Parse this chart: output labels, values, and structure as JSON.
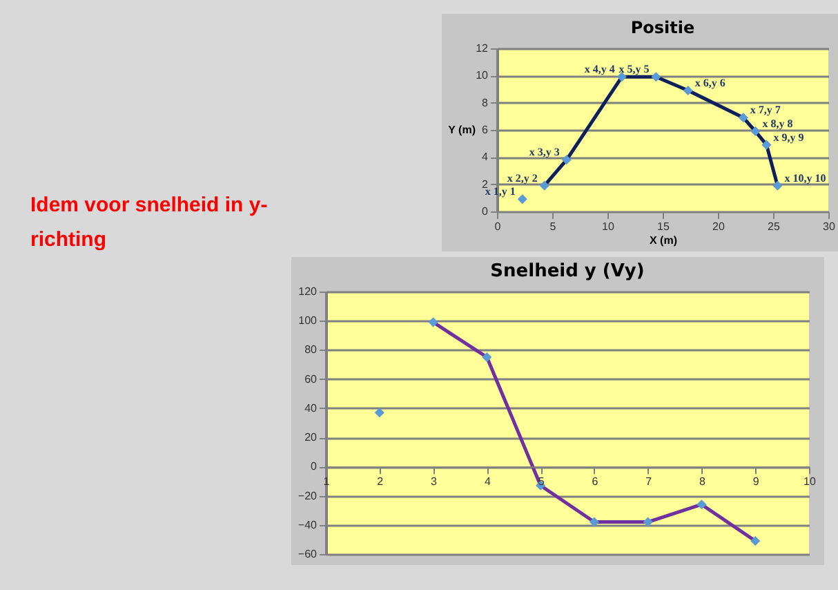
{
  "chart_data": [
    {
      "type": "line",
      "title": "Positie",
      "xlabel": "X (m)",
      "ylabel": "Y (m)",
      "xlim": [
        0,
        30
      ],
      "ylim": [
        0,
        12
      ],
      "xticks": [
        0,
        5,
        10,
        15,
        20,
        25,
        30
      ],
      "yticks": [
        0,
        2,
        4,
        6,
        8,
        10,
        12
      ],
      "grid": "y",
      "marker": "diamond",
      "series": [
        {
          "type": "scatter",
          "color": "#5b9bd5",
          "x": [
            2.3,
            4.3,
            6.3,
            11.3,
            14.4,
            17.3,
            22.3,
            23.4,
            24.4,
            25.4
          ],
          "values": [
            0.9,
            1.9,
            3.8,
            9.9,
            9.9,
            8.9,
            6.9,
            5.9,
            4.9,
            1.9
          ]
        },
        {
          "type": "line",
          "color": "#0d1f5c",
          "x": [
            4.3,
            6.3,
            11.3,
            14.4,
            17.3,
            22.3,
            23.4,
            24.4,
            25.4
          ],
          "values": [
            1.9,
            3.8,
            9.9,
            9.9,
            8.9,
            6.9,
            5.9,
            4.9,
            1.9
          ]
        }
      ],
      "annotations": [
        {
          "text": "x 1,y 1",
          "x": 2.3,
          "y": 0.9
        },
        {
          "text": "x 2,y 2",
          "x": 4.3,
          "y": 1.9
        },
        {
          "text": "x 3,y 3",
          "x": 6.3,
          "y": 3.8
        },
        {
          "text": "x 4,y 4",
          "x": 11.3,
          "y": 9.9
        },
        {
          "text": "x 5,y 5",
          "x": 14.4,
          "y": 9.9
        },
        {
          "text": "x 6,y 6",
          "x": 17.3,
          "y": 8.9
        },
        {
          "text": "x 7,y 7",
          "x": 22.3,
          "y": 6.9
        },
        {
          "text": "x 8,y 8",
          "x": 23.4,
          "y": 5.9
        },
        {
          "text": "x 9,y 9",
          "x": 24.4,
          "y": 4.9
        },
        {
          "text": "x 10,y 10",
          "x": 25.4,
          "y": 1.9
        }
      ]
    },
    {
      "type": "other",
      "annotations": [
        "Idem voor snelheid in y-richting"
      ]
    },
    {
      "type": "line",
      "title": "Snelheid y (Vy)",
      "xlim": [
        1,
        10
      ],
      "ylim": [
        -60,
        120
      ],
      "xticks": [
        1,
        2,
        3,
        4,
        5,
        6,
        7,
        8,
        9,
        10
      ],
      "yticks": [
        -60,
        -40,
        -20,
        0,
        20,
        40,
        60,
        80,
        100,
        120
      ],
      "grid": "y",
      "marker": "diamond",
      "series": [
        {
          "type": "scatter",
          "color": "#5b9bd5",
          "x": [
            2,
            3,
            4,
            5,
            6,
            7,
            8,
            9
          ],
          "values": [
            37,
            99,
            75,
            -13,
            -38,
            -38,
            -26,
            -51
          ]
        },
        {
          "type": "line",
          "color": "#7030a0",
          "x": [
            3,
            4,
            5,
            6,
            7,
            8,
            9
          ],
          "values": [
            99,
            75,
            -13,
            -38,
            -38,
            -26,
            -51
          ]
        }
      ]
    }
  ]
}
